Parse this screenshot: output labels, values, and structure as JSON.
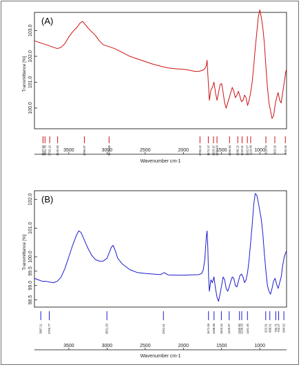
{
  "chart_data": [
    {
      "type": "line",
      "panel_label": "(A)",
      "color": "#cc1111",
      "xlabel": "Wavenumber cm-1",
      "ylabel": "Transmittance [%]",
      "x_range": [
        3950,
        650
      ],
      "x_ticks": [
        3500,
        3000,
        2500,
        2000,
        1500,
        1000
      ],
      "ylim": [
        99.2,
        103.7
      ],
      "y_ticks": [
        100.0,
        101.0,
        102.0,
        103.0
      ],
      "y_tick_labels": [
        "100.0",
        "101.0",
        "102.0",
        "103.0"
      ],
      "series": [
        {
          "x": [
            3950,
            3900,
            3850,
            3800,
            3750,
            3700,
            3650,
            3600,
            3550,
            3500,
            3450,
            3400,
            3350,
            3320,
            3290,
            3250,
            3200,
            3150,
            3100,
            3050,
            3000,
            2950,
            2900,
            2800,
            2700,
            2600,
            2500,
            2400,
            2300,
            2200,
            2100,
            2000,
            1950,
            1900,
            1850,
            1800,
            1760,
            1740,
            1720,
            1700,
            1690,
            1680,
            1670,
            1660,
            1650,
            1640,
            1620,
            1600,
            1580,
            1560,
            1540,
            1520,
            1500,
            1480,
            1460,
            1440,
            1420,
            1400,
            1380,
            1360,
            1340,
            1320,
            1300,
            1280,
            1260,
            1240,
            1220,
            1200,
            1180,
            1160,
            1140,
            1120,
            1100,
            1080,
            1060,
            1040,
            1020,
            1000,
            980,
            960,
            940,
            920,
            900,
            880,
            860,
            840,
            820,
            800,
            780,
            760,
            740,
            720,
            700,
            680,
            660,
            650
          ],
          "y": [
            102.6,
            102.55,
            102.5,
            102.45,
            102.4,
            102.35,
            102.3,
            102.35,
            102.5,
            102.75,
            102.95,
            103.1,
            103.3,
            103.35,
            103.25,
            103.1,
            102.95,
            102.8,
            102.6,
            102.45,
            102.4,
            102.35,
            102.3,
            102.15,
            102.0,
            101.9,
            101.8,
            101.7,
            101.62,
            101.55,
            101.52,
            101.5,
            101.48,
            101.45,
            101.42,
            101.42,
            101.45,
            101.48,
            101.52,
            101.65,
            101.85,
            101.3,
            100.8,
            100.3,
            100.5,
            100.7,
            100.8,
            101.0,
            100.6,
            100.3,
            100.6,
            100.9,
            100.95,
            100.6,
            100.2,
            100.0,
            100.2,
            100.4,
            100.6,
            100.8,
            100.65,
            100.4,
            100.5,
            100.65,
            100.45,
            100.25,
            100.3,
            100.5,
            100.4,
            100.1,
            100.3,
            100.6,
            101.0,
            101.6,
            102.3,
            102.9,
            103.5,
            103.8,
            103.5,
            103.1,
            102.5,
            101.6,
            100.8,
            100.2,
            99.9,
            99.6,
            99.7,
            100.1,
            100.4,
            100.6,
            100.3,
            100.2,
            100.6,
            101.0,
            101.4,
            101.5
          ]
        }
      ],
      "peaks": [
        "3837.90",
        "3811.70",
        "3750.10",
        "3646.60",
        "3296.87",
        "2973.36",
        "1783.42",
        "1674.12",
        "1605.97",
        "1560.03",
        "1395.60",
        "1288.22",
        "1232.01",
        "1162.67",
        "1119.49",
        "919.84",
        "803.20",
        "665.66"
      ],
      "peak_x": [
        3837.9,
        3811.7,
        3750.1,
        3646.6,
        3296.87,
        2973.36,
        1783.42,
        1674.12,
        1605.97,
        1560.03,
        1395.6,
        1288.22,
        1232.01,
        1162.67,
        1119.49,
        919.84,
        803.2,
        665.66
      ]
    },
    {
      "type": "line",
      "panel_label": "(B)",
      "color": "#1a1acc",
      "xlabel": "Wavenumber cm-1",
      "ylabel": "Transmittance [%]",
      "x_range": [
        3950,
        650
      ],
      "x_ticks": [
        3500,
        3000,
        2500,
        2000,
        1500,
        1000
      ],
      "ylim": [
        98.25,
        102.3
      ],
      "y_ticks": [
        98.5,
        99.0,
        99.5,
        100.0,
        101.0,
        102.0
      ],
      "y_tick_labels": [
        "98.5",
        "99.0",
        "99.5",
        "100.0",
        "101.0",
        "102.0"
      ],
      "series": [
        {
          "x": [
            3950,
            3900,
            3850,
            3800,
            3750,
            3700,
            3650,
            3600,
            3550,
            3500,
            3450,
            3400,
            3370,
            3340,
            3300,
            3250,
            3200,
            3150,
            3100,
            3050,
            3000,
            2970,
            2940,
            2920,
            2890,
            2860,
            2800,
            2700,
            2600,
            2500,
            2400,
            2300,
            2250,
            2200,
            2100,
            2000,
            1900,
            1800,
            1760,
            1740,
            1720,
            1700,
            1690,
            1680,
            1670,
            1660,
            1650,
            1640,
            1620,
            1600,
            1580,
            1560,
            1540,
            1520,
            1500,
            1480,
            1460,
            1440,
            1420,
            1400,
            1380,
            1360,
            1340,
            1320,
            1300,
            1280,
            1260,
            1240,
            1220,
            1200,
            1180,
            1160,
            1140,
            1120,
            1100,
            1080,
            1060,
            1040,
            1020,
            1000,
            980,
            960,
            940,
            920,
            900,
            880,
            860,
            840,
            820,
            800,
            780,
            760,
            740,
            720,
            700,
            680,
            660,
            650
          ],
          "y": [
            99.25,
            99.2,
            99.15,
            99.15,
            99.12,
            99.1,
            99.15,
            99.3,
            99.6,
            100.0,
            100.4,
            100.75,
            100.9,
            100.85,
            100.6,
            100.3,
            100.05,
            99.9,
            99.85,
            99.85,
            99.95,
            100.15,
            100.35,
            100.4,
            100.2,
            99.95,
            99.75,
            99.55,
            99.45,
            99.42,
            99.4,
            99.38,
            99.45,
            99.37,
            99.36,
            99.36,
            99.37,
            99.38,
            99.42,
            99.55,
            99.9,
            100.7,
            100.9,
            100.3,
            99.3,
            98.8,
            99.0,
            99.2,
            99.1,
            99.3,
            98.9,
            98.6,
            98.45,
            98.7,
            99.0,
            99.3,
            99.2,
            98.9,
            98.8,
            98.95,
            99.15,
            99.3,
            99.25,
            99.0,
            98.95,
            99.15,
            99.35,
            99.4,
            99.3,
            99.1,
            99.2,
            99.45,
            99.9,
            100.5,
            101.1,
            101.8,
            102.2,
            102.15,
            101.9,
            101.6,
            101.3,
            100.8,
            100.1,
            99.5,
            99.0,
            98.8,
            98.7,
            98.9,
            99.15,
            99.25,
            99.05,
            98.9,
            99.1,
            99.3,
            99.7,
            100.0,
            100.15,
            100.2
          ]
        }
      ],
      "peaks": [
        "3867.11",
        "3755.77",
        "3001.53",
        "2261.61",
        "1671.59",
        "1598.99",
        "1503.34",
        "1400.97",
        "1265.90",
        "1236.43",
        "1161.46",
        "922.51",
        "868.51",
        "790.71",
        "753.27",
        "684.62"
      ],
      "peak_x": [
        3867.11,
        3755.77,
        3001.53,
        2261.61,
        1671.59,
        1598.99,
        1503.34,
        1400.97,
        1265.9,
        1236.43,
        1161.46,
        922.51,
        868.51,
        790.71,
        753.27,
        684.62
      ]
    }
  ]
}
